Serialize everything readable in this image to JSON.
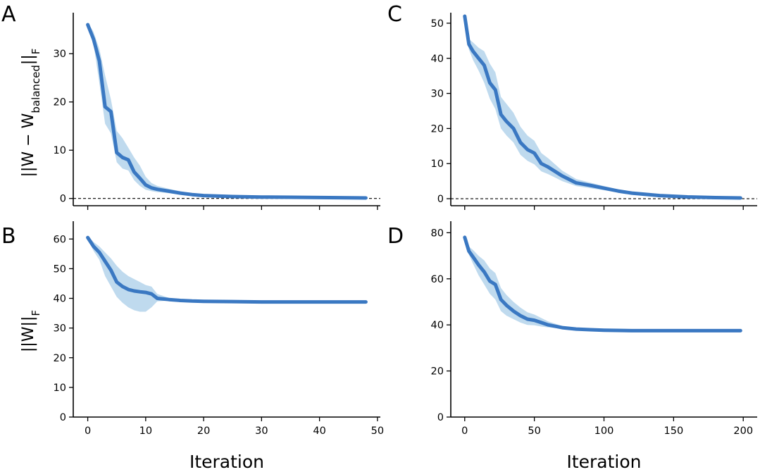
{
  "colors": {
    "line": "#3a78c2",
    "band": "#a9cde8"
  },
  "figure": {
    "ylabels": {
      "top_main": "||W − W",
      "top_sub": "balanced",
      "top_end": "||",
      "top_end_sub": "F",
      "bottom_main": "||W||",
      "bottom_sub": "F"
    }
  },
  "chart_data": [
    {
      "panel": "A",
      "type": "line",
      "title": "",
      "xlabel": "",
      "ylabel": "||W − W_balanced||_F",
      "xlim": [
        -2.5,
        50.5
      ],
      "ylim": [
        -1.5,
        38.5
      ],
      "xticks": [
        0,
        10,
        20,
        30,
        40,
        50
      ],
      "xtick_labels_visible": false,
      "yticks": [
        0,
        10,
        20,
        30
      ],
      "reference_line": 0,
      "series": [
        {
          "name": "mean",
          "x": [
            0,
            1,
            2,
            3,
            4,
            5,
            6,
            7,
            8,
            9,
            10,
            11,
            12,
            14,
            16,
            18,
            20,
            25,
            30,
            35,
            40,
            45,
            48
          ],
          "y": [
            36,
            33,
            28.5,
            19,
            18,
            9.5,
            8.5,
            8,
            5.5,
            4.2,
            2.8,
            2.2,
            1.9,
            1.5,
            1.1,
            0.8,
            0.6,
            0.4,
            0.3,
            0.25,
            0.2,
            0.15,
            0.1
          ],
          "lower": [
            35.5,
            32,
            24,
            15.5,
            13.5,
            7.5,
            6.2,
            5.8,
            3.8,
            2.6,
            1.8,
            1.5,
            1.3,
            1.1,
            0.8,
            0.6,
            0.4,
            0.3,
            0.2,
            0.15,
            0.12,
            0.1,
            0.05
          ],
          "upper": [
            36.5,
            34.5,
            31,
            25.5,
            20.5,
            14,
            12.5,
            10.5,
            8.5,
            6.8,
            4.5,
            3.2,
            2.6,
            2,
            1.5,
            1.1,
            0.8,
            0.6,
            0.45,
            0.35,
            0.3,
            0.25,
            0.2
          ]
        }
      ]
    },
    {
      "panel": "B",
      "type": "line",
      "title": "",
      "xlabel": "Iteration",
      "ylabel": "||W||_F",
      "xlim": [
        -2.5,
        50.5
      ],
      "ylim": [
        0,
        66
      ],
      "xticks": [
        0,
        10,
        20,
        30,
        40,
        50
      ],
      "xtick_labels_visible": true,
      "yticks": [
        0,
        10,
        20,
        30,
        40,
        50,
        60
      ],
      "series": [
        {
          "name": "mean",
          "x": [
            0,
            1,
            2,
            3,
            4,
            5,
            6,
            7,
            8,
            9,
            10,
            11,
            12,
            14,
            16,
            18,
            20,
            25,
            30,
            35,
            40,
            45,
            48
          ],
          "y": [
            60.5,
            57.5,
            55.5,
            52.5,
            49.5,
            45.5,
            44,
            43,
            42.5,
            42.2,
            42,
            41.5,
            40,
            39.6,
            39.3,
            39.1,
            39,
            38.9,
            38.8,
            38.8,
            38.8,
            38.8,
            38.8
          ],
          "lower": [
            60,
            56,
            53,
            47.5,
            44,
            40.5,
            38.5,
            37,
            36,
            35.5,
            35.5,
            37,
            39,
            39.2,
            39,
            38.9,
            38.8,
            38.7,
            38.7,
            38.7,
            38.7,
            38.7,
            38.7
          ],
          "upper": [
            61,
            59,
            57.5,
            55.5,
            53.5,
            51,
            49,
            47.5,
            46.5,
            45.5,
            44.5,
            44,
            41.5,
            40.2,
            39.7,
            39.4,
            39.2,
            39.1,
            39,
            39,
            39,
            39,
            39
          ]
        }
      ]
    },
    {
      "panel": "C",
      "type": "line",
      "title": "",
      "xlabel": "",
      "ylabel": "",
      "xlim": [
        -10,
        210
      ],
      "ylim": [
        -2,
        53
      ],
      "xticks": [
        0,
        50,
        100,
        150,
        200
      ],
      "xtick_labels_visible": false,
      "yticks": [
        0,
        10,
        20,
        30,
        40,
        50
      ],
      "reference_line": 0,
      "series": [
        {
          "name": "mean",
          "x": [
            0,
            3,
            6,
            10,
            14,
            18,
            22,
            26,
            30,
            35,
            40,
            45,
            50,
            55,
            60,
            70,
            80,
            90,
            100,
            110,
            120,
            140,
            160,
            180,
            198
          ],
          "y": [
            52,
            44,
            42,
            40,
            38,
            33,
            31,
            24,
            22,
            20,
            16,
            14,
            13,
            10,
            9,
            6.5,
            4.5,
            3.8,
            3,
            2.2,
            1.6,
            0.9,
            0.5,
            0.3,
            0.2
          ],
          "lower": [
            51.5,
            42.5,
            39.5,
            36.5,
            33,
            28.5,
            25.5,
            20,
            18,
            16,
            12.5,
            10.8,
            9.8,
            7.8,
            7,
            5,
            3.6,
            3,
            2.4,
            1.8,
            1.3,
            0.7,
            0.4,
            0.2,
            0.1
          ],
          "upper": [
            52.5,
            45.5,
            44.5,
            43,
            42,
            38.5,
            36,
            29,
            27,
            24.5,
            20.5,
            18,
            16.5,
            13,
            11.5,
            8,
            5.6,
            4.6,
            3.6,
            2.7,
            2,
            1.2,
            0.7,
            0.4,
            0.3
          ]
        }
      ]
    },
    {
      "panel": "D",
      "type": "line",
      "title": "",
      "xlabel": "Iteration",
      "ylabel": "",
      "xlim": [
        -10,
        210
      ],
      "ylim": [
        0,
        85
      ],
      "xticks": [
        0,
        50,
        100,
        150,
        200
      ],
      "xtick_labels_visible": true,
      "yticks": [
        0,
        20,
        40,
        60,
        80
      ],
      "series": [
        {
          "name": "mean",
          "x": [
            0,
            3,
            6,
            10,
            14,
            18,
            22,
            26,
            30,
            35,
            40,
            45,
            50,
            55,
            60,
            70,
            80,
            90,
            100,
            120,
            140,
            160,
            180,
            198
          ],
          "y": [
            78,
            72,
            69.5,
            66,
            63,
            59,
            57.5,
            51,
            48.5,
            46,
            44,
            42.5,
            42,
            41,
            40,
            38.8,
            38.2,
            37.9,
            37.7,
            37.5,
            37.5,
            37.5,
            37.5,
            37.5
          ],
          "lower": [
            77.5,
            70.5,
            66.5,
            61.5,
            57.5,
            53.5,
            51,
            46,
            44,
            42.5,
            41,
            40,
            39.8,
            39.3,
            38.9,
            38.3,
            37.9,
            37.7,
            37.5,
            37.3,
            37.3,
            37.3,
            37.3,
            37.3
          ],
          "upper": [
            78.5,
            74,
            72.5,
            70,
            68,
            64.5,
            62.5,
            56,
            53,
            50,
            47.5,
            45.5,
            44.5,
            43,
            41.5,
            39.5,
            38.6,
            38.2,
            37.9,
            37.7,
            37.7,
            37.7,
            37.7,
            37.7
          ]
        }
      ]
    }
  ]
}
